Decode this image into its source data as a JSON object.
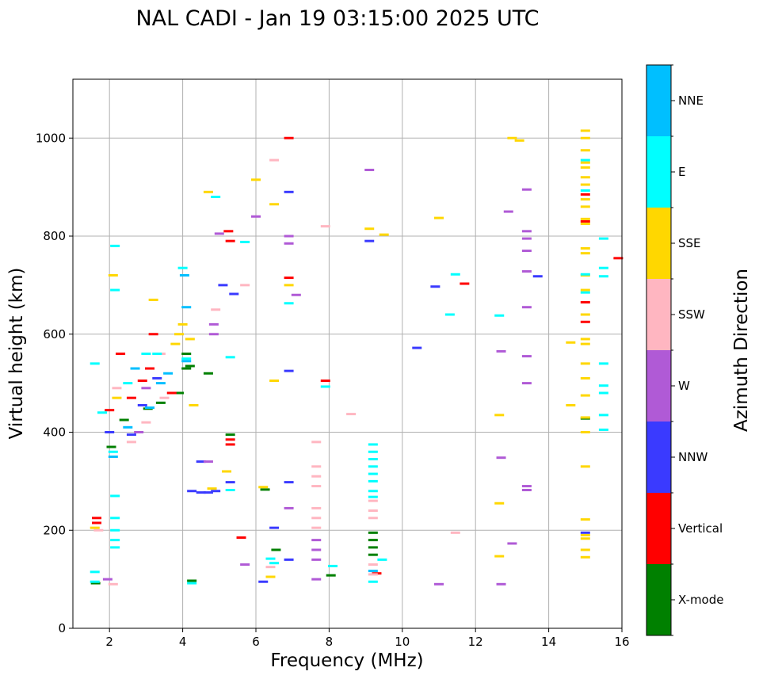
{
  "chart_data": {
    "type": "scatter",
    "title": "NAL CADI - Jan 19 03:15:00 2025 UTC",
    "xlabel": "Frequency (MHz)",
    "ylabel": "Virtual height (km)",
    "xlim": [
      1,
      16
    ],
    "ylim": [
      0,
      1120
    ],
    "xticks": [
      2,
      4,
      6,
      8,
      10,
      12,
      14,
      16
    ],
    "yticks": [
      0,
      200,
      400,
      600,
      800,
      1000
    ],
    "grid": true,
    "colorbar": {
      "label": "Azimuth Direction",
      "categories": [
        "X-mode",
        "Vertical",
        "NNW",
        "W",
        "SSW",
        "SSE",
        "E",
        "NNE"
      ],
      "colors": [
        "#008000",
        "#ff0000",
        "#3a3aff",
        "#b05ad6",
        "#ffb6c1",
        "#ffd700",
        "#00ffff",
        "#00bfff"
      ]
    },
    "series": [
      {
        "name": "X-mode",
        "points": [
          [
            1.62,
            92
          ],
          [
            4.25,
            97
          ],
          [
            5.3,
            395
          ],
          [
            6.25,
            283
          ],
          [
            6.55,
            160
          ],
          [
            8.05,
            108
          ],
          [
            9.2,
            195
          ],
          [
            9.2,
            180
          ],
          [
            9.2,
            165
          ],
          [
            9.2,
            150
          ],
          [
            15.0,
            428
          ],
          [
            2.05,
            370
          ],
          [
            2.4,
            425
          ],
          [
            3.05,
            448
          ],
          [
            3.4,
            460
          ],
          [
            3.9,
            480
          ],
          [
            4.1,
            530
          ],
          [
            4.1,
            560
          ],
          [
            4.7,
            520
          ],
          [
            4.2,
            535
          ]
        ]
      },
      {
        "name": "Vertical",
        "points": [
          [
            1.65,
            225
          ],
          [
            1.65,
            215
          ],
          [
            5.3,
            375
          ],
          [
            5.3,
            385
          ],
          [
            5.6,
            185
          ],
          [
            6.9,
            1000
          ],
          [
            6.9,
            715
          ],
          [
            7.9,
            505
          ],
          [
            9.3,
            112
          ],
          [
            11.7,
            703
          ],
          [
            15.0,
            885
          ],
          [
            15.0,
            830
          ],
          [
            15.0,
            665
          ],
          [
            15.0,
            625
          ],
          [
            15.9,
            755
          ],
          [
            2.6,
            470
          ],
          [
            2.9,
            505
          ],
          [
            3.1,
            530
          ],
          [
            3.2,
            600
          ],
          [
            5.25,
            810
          ],
          [
            5.3,
            790
          ],
          [
            2.0,
            445
          ],
          [
            3.7,
            480
          ],
          [
            2.3,
            560
          ]
        ]
      },
      {
        "name": "NNW",
        "points": [
          [
            4.25,
            280
          ],
          [
            4.5,
            277
          ],
          [
            4.7,
            277
          ],
          [
            5.3,
            298
          ],
          [
            6.2,
            95
          ],
          [
            6.5,
            205
          ],
          [
            6.9,
            298
          ],
          [
            6.9,
            890
          ],
          [
            9.1,
            790
          ],
          [
            10.4,
            572
          ],
          [
            10.9,
            697
          ],
          [
            13.7,
            718
          ],
          [
            15.0,
            195
          ],
          [
            2.6,
            395
          ],
          [
            2.9,
            455
          ],
          [
            4.9,
            280
          ],
          [
            5.1,
            700
          ],
          [
            4.5,
            340
          ],
          [
            5.4,
            682
          ],
          [
            6.9,
            525
          ],
          [
            2.0,
            400
          ],
          [
            3.3,
            510
          ],
          [
            6.9,
            140
          ]
        ]
      },
      {
        "name": "W",
        "points": [
          [
            1.95,
            100
          ],
          [
            4.7,
            340
          ],
          [
            4.85,
            620
          ],
          [
            4.85,
            600
          ],
          [
            5.0,
            805
          ],
          [
            6.9,
            245
          ],
          [
            6.9,
            800
          ],
          [
            6.9,
            785
          ],
          [
            7.65,
            180
          ],
          [
            7.65,
            160
          ],
          [
            7.65,
            140
          ],
          [
            7.65,
            100
          ],
          [
            9.1,
            935
          ],
          [
            11.0,
            90
          ],
          [
            12.7,
            565
          ],
          [
            12.7,
            348
          ],
          [
            12.7,
            90
          ],
          [
            12.9,
            850
          ],
          [
            13.0,
            173
          ],
          [
            13.4,
            895
          ],
          [
            13.4,
            810
          ],
          [
            13.4,
            795
          ],
          [
            13.4,
            770
          ],
          [
            13.4,
            728
          ],
          [
            13.4,
            655
          ],
          [
            13.4,
            555
          ],
          [
            13.4,
            500
          ],
          [
            13.4,
            290
          ],
          [
            13.4,
            282
          ],
          [
            6.0,
            840
          ],
          [
            5.7,
            130
          ],
          [
            7.1,
            680
          ],
          [
            3.0,
            490
          ],
          [
            2.8,
            400
          ]
        ]
      },
      {
        "name": "SSW",
        "points": [
          [
            1.7,
            200
          ],
          [
            2.1,
            90
          ],
          [
            4.9,
            650
          ],
          [
            7.65,
            380
          ],
          [
            7.65,
            330
          ],
          [
            7.65,
            310
          ],
          [
            7.65,
            290
          ],
          [
            7.65,
            245
          ],
          [
            7.65,
            225
          ],
          [
            7.65,
            205
          ],
          [
            8.6,
            437
          ],
          [
            9.2,
            260
          ],
          [
            9.2,
            240
          ],
          [
            9.2,
            225
          ],
          [
            9.2,
            130
          ],
          [
            9.2,
            110
          ],
          [
            11.45,
            195
          ],
          [
            6.5,
            955
          ],
          [
            7.9,
            820
          ],
          [
            2.6,
            380
          ],
          [
            3.0,
            420
          ],
          [
            3.4,
            560
          ],
          [
            2.2,
            490
          ],
          [
            3.5,
            470
          ],
          [
            6.4,
            125
          ],
          [
            5.7,
            700
          ]
        ]
      },
      {
        "name": "SSE",
        "points": [
          [
            1.6,
            205
          ],
          [
            2.1,
            720
          ],
          [
            4.8,
            285
          ],
          [
            5.2,
            320
          ],
          [
            6.2,
            288
          ],
          [
            6.4,
            105
          ],
          [
            6.5,
            505
          ],
          [
            6.5,
            865
          ],
          [
            6.9,
            700
          ],
          [
            9.1,
            815
          ],
          [
            9.5,
            803
          ],
          [
            11.0,
            837
          ],
          [
            12.65,
            435
          ],
          [
            12.65,
            255
          ],
          [
            12.65,
            147
          ],
          [
            13.0,
            1000
          ],
          [
            13.2,
            995
          ],
          [
            14.6,
            583
          ],
          [
            14.6,
            455
          ],
          [
            15.0,
            1015
          ],
          [
            15.0,
            1000
          ],
          [
            15.0,
            975
          ],
          [
            15.0,
            950
          ],
          [
            15.0,
            940
          ],
          [
            15.0,
            920
          ],
          [
            15.0,
            905
          ],
          [
            15.0,
            875
          ],
          [
            15.0,
            860
          ],
          [
            15.0,
            835
          ],
          [
            15.0,
            825
          ],
          [
            15.0,
            775
          ],
          [
            15.0,
            765
          ],
          [
            15.0,
            720
          ],
          [
            15.0,
            690
          ],
          [
            15.0,
            640
          ],
          [
            15.0,
            590
          ],
          [
            15.0,
            580
          ],
          [
            15.0,
            540
          ],
          [
            15.0,
            510
          ],
          [
            15.0,
            475
          ],
          [
            15.0,
            430
          ],
          [
            15.0,
            400
          ],
          [
            15.0,
            330
          ],
          [
            15.0,
            222
          ],
          [
            15.0,
            190
          ],
          [
            15.0,
            183
          ],
          [
            15.0,
            160
          ],
          [
            15.0,
            145
          ],
          [
            6.0,
            915
          ],
          [
            4.2,
            590
          ],
          [
            3.9,
            600
          ],
          [
            3.2,
            670
          ],
          [
            2.2,
            470
          ],
          [
            3.8,
            580
          ],
          [
            4.0,
            620
          ],
          [
            4.3,
            455
          ],
          [
            4.7,
            890
          ]
        ]
      },
      {
        "name": "E",
        "points": [
          [
            1.6,
            115
          ],
          [
            1.6,
            95
          ],
          [
            1.6,
            540
          ],
          [
            2.15,
            780
          ],
          [
            2.15,
            690
          ],
          [
            2.15,
            270
          ],
          [
            2.15,
            225
          ],
          [
            2.15,
            200
          ],
          [
            2.15,
            180
          ],
          [
            2.15,
            165
          ],
          [
            4.25,
            92
          ],
          [
            5.3,
            553
          ],
          [
            5.3,
            282
          ],
          [
            5.7,
            788
          ],
          [
            6.4,
            142
          ],
          [
            6.5,
            133
          ],
          [
            6.9,
            663
          ],
          [
            8.1,
            127
          ],
          [
            7.9,
            493
          ],
          [
            9.2,
            375
          ],
          [
            9.2,
            360
          ],
          [
            9.2,
            345
          ],
          [
            9.2,
            330
          ],
          [
            9.2,
            315
          ],
          [
            9.2,
            300
          ],
          [
            9.2,
            280
          ],
          [
            9.2,
            268
          ],
          [
            9.2,
            95
          ],
          [
            9.45,
            140
          ],
          [
            11.3,
            640
          ],
          [
            11.45,
            722
          ],
          [
            12.65,
            638
          ],
          [
            15.0,
            955
          ],
          [
            15.0,
            893
          ],
          [
            15.0,
            722
          ],
          [
            15.0,
            685
          ],
          [
            15.5,
            795
          ],
          [
            15.5,
            735
          ],
          [
            15.5,
            718
          ],
          [
            15.5,
            540
          ],
          [
            15.5,
            495
          ],
          [
            15.5,
            480
          ],
          [
            15.5,
            435
          ],
          [
            15.5,
            405
          ],
          [
            2.5,
            500
          ],
          [
            3.0,
            560
          ],
          [
            3.3,
            560
          ],
          [
            4.0,
            735
          ],
          [
            2.1,
            360
          ],
          [
            4.1,
            550
          ],
          [
            1.8,
            440
          ],
          [
            4.9,
            880
          ]
        ]
      },
      {
        "name": "NNE",
        "points": [
          [
            4.1,
            655
          ],
          [
            4.1,
            545
          ],
          [
            2.1,
            350
          ],
          [
            2.7,
            530
          ],
          [
            3.1,
            450
          ],
          [
            3.6,
            520
          ],
          [
            9.2,
            117
          ],
          [
            4.05,
            720
          ],
          [
            2.5,
            410
          ],
          [
            3.4,
            500
          ]
        ]
      }
    ]
  }
}
